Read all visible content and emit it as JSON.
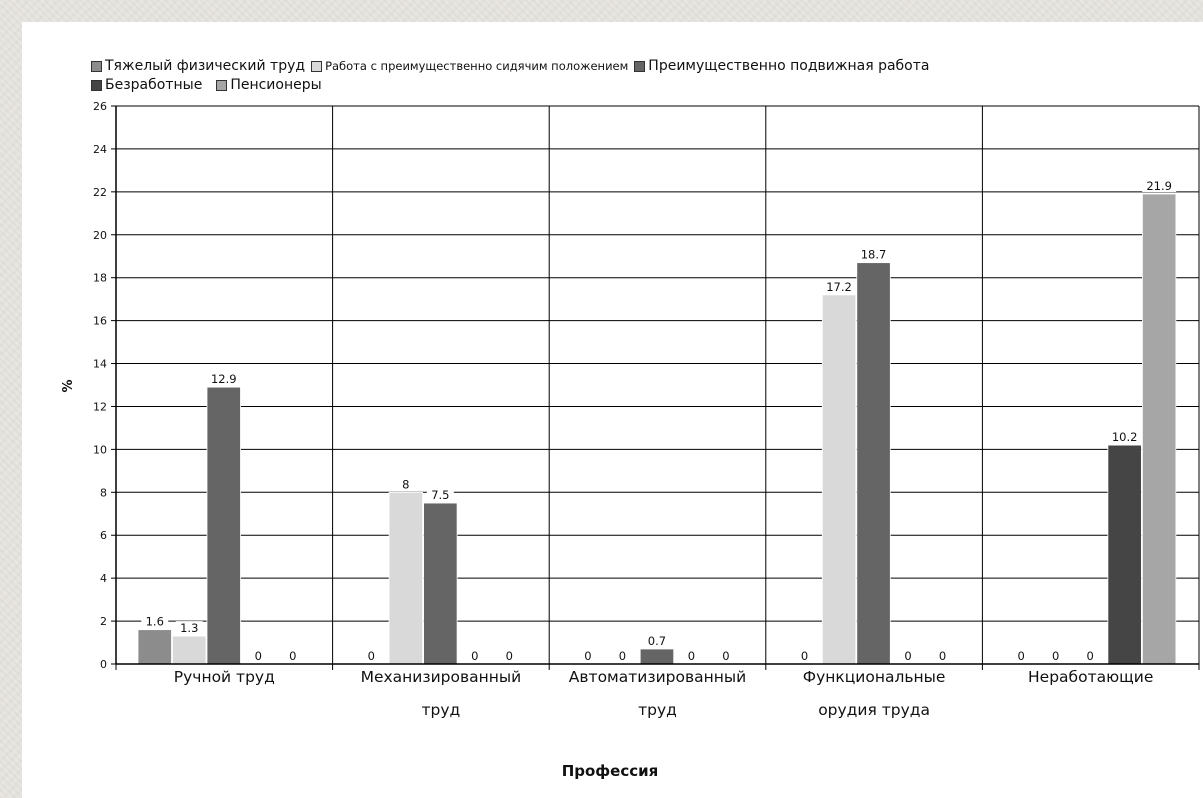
{
  "chart_data": {
    "type": "bar",
    "ylabel": "%",
    "xlabel": "Профессия",
    "ylim": [
      0,
      26
    ],
    "y_ticks": [
      "0",
      "2",
      "4",
      "6",
      "8",
      "10",
      "12",
      "14",
      "16",
      "18",
      "20",
      "22",
      "24",
      "26"
    ],
    "grid": "horizontal and vertical",
    "legend_position": "top",
    "categories": [
      [
        "Ручной труд"
      ],
      [
        "Механизированный",
        "труд"
      ],
      [
        "Автоматизированный",
        "труд"
      ],
      [
        "Функциональные",
        "орудия труда"
      ],
      [
        "Неработающие"
      ]
    ],
    "series": [
      {
        "name": "Тяжелый физический труд",
        "color": "#8c8c8c",
        "values": [
          1.6,
          0,
          0,
          0,
          0
        ],
        "labels": [
          "1.6",
          "0",
          "0",
          "0",
          "0"
        ]
      },
      {
        "name": "Работа с преимущественно сидячим положением",
        "color": "#d9d9d9",
        "values": [
          1.3,
          8,
          0,
          17.2,
          0
        ],
        "labels": [
          "1.3",
          "8",
          "0",
          "17.2",
          "0"
        ]
      },
      {
        "name": "Преимущественно подвижная работа",
        "color": "#656565",
        "values": [
          12.9,
          7.5,
          0.7,
          18.7,
          0
        ],
        "labels": [
          "12.9",
          "7.5",
          "0.7",
          "18.7",
          "0"
        ]
      },
      {
        "name": "Безработные",
        "color": "#454545",
        "values": [
          0,
          0,
          0,
          0,
          10.2
        ],
        "labels": [
          "0",
          "0",
          "0",
          "0",
          "10.2"
        ]
      },
      {
        "name": "Пенсионеры",
        "color": "#a6a6a6",
        "values": [
          0,
          0,
          0,
          0,
          21.9
        ],
        "labels": [
          "0",
          "0",
          "0",
          "0",
          "21.9"
        ]
      }
    ]
  }
}
